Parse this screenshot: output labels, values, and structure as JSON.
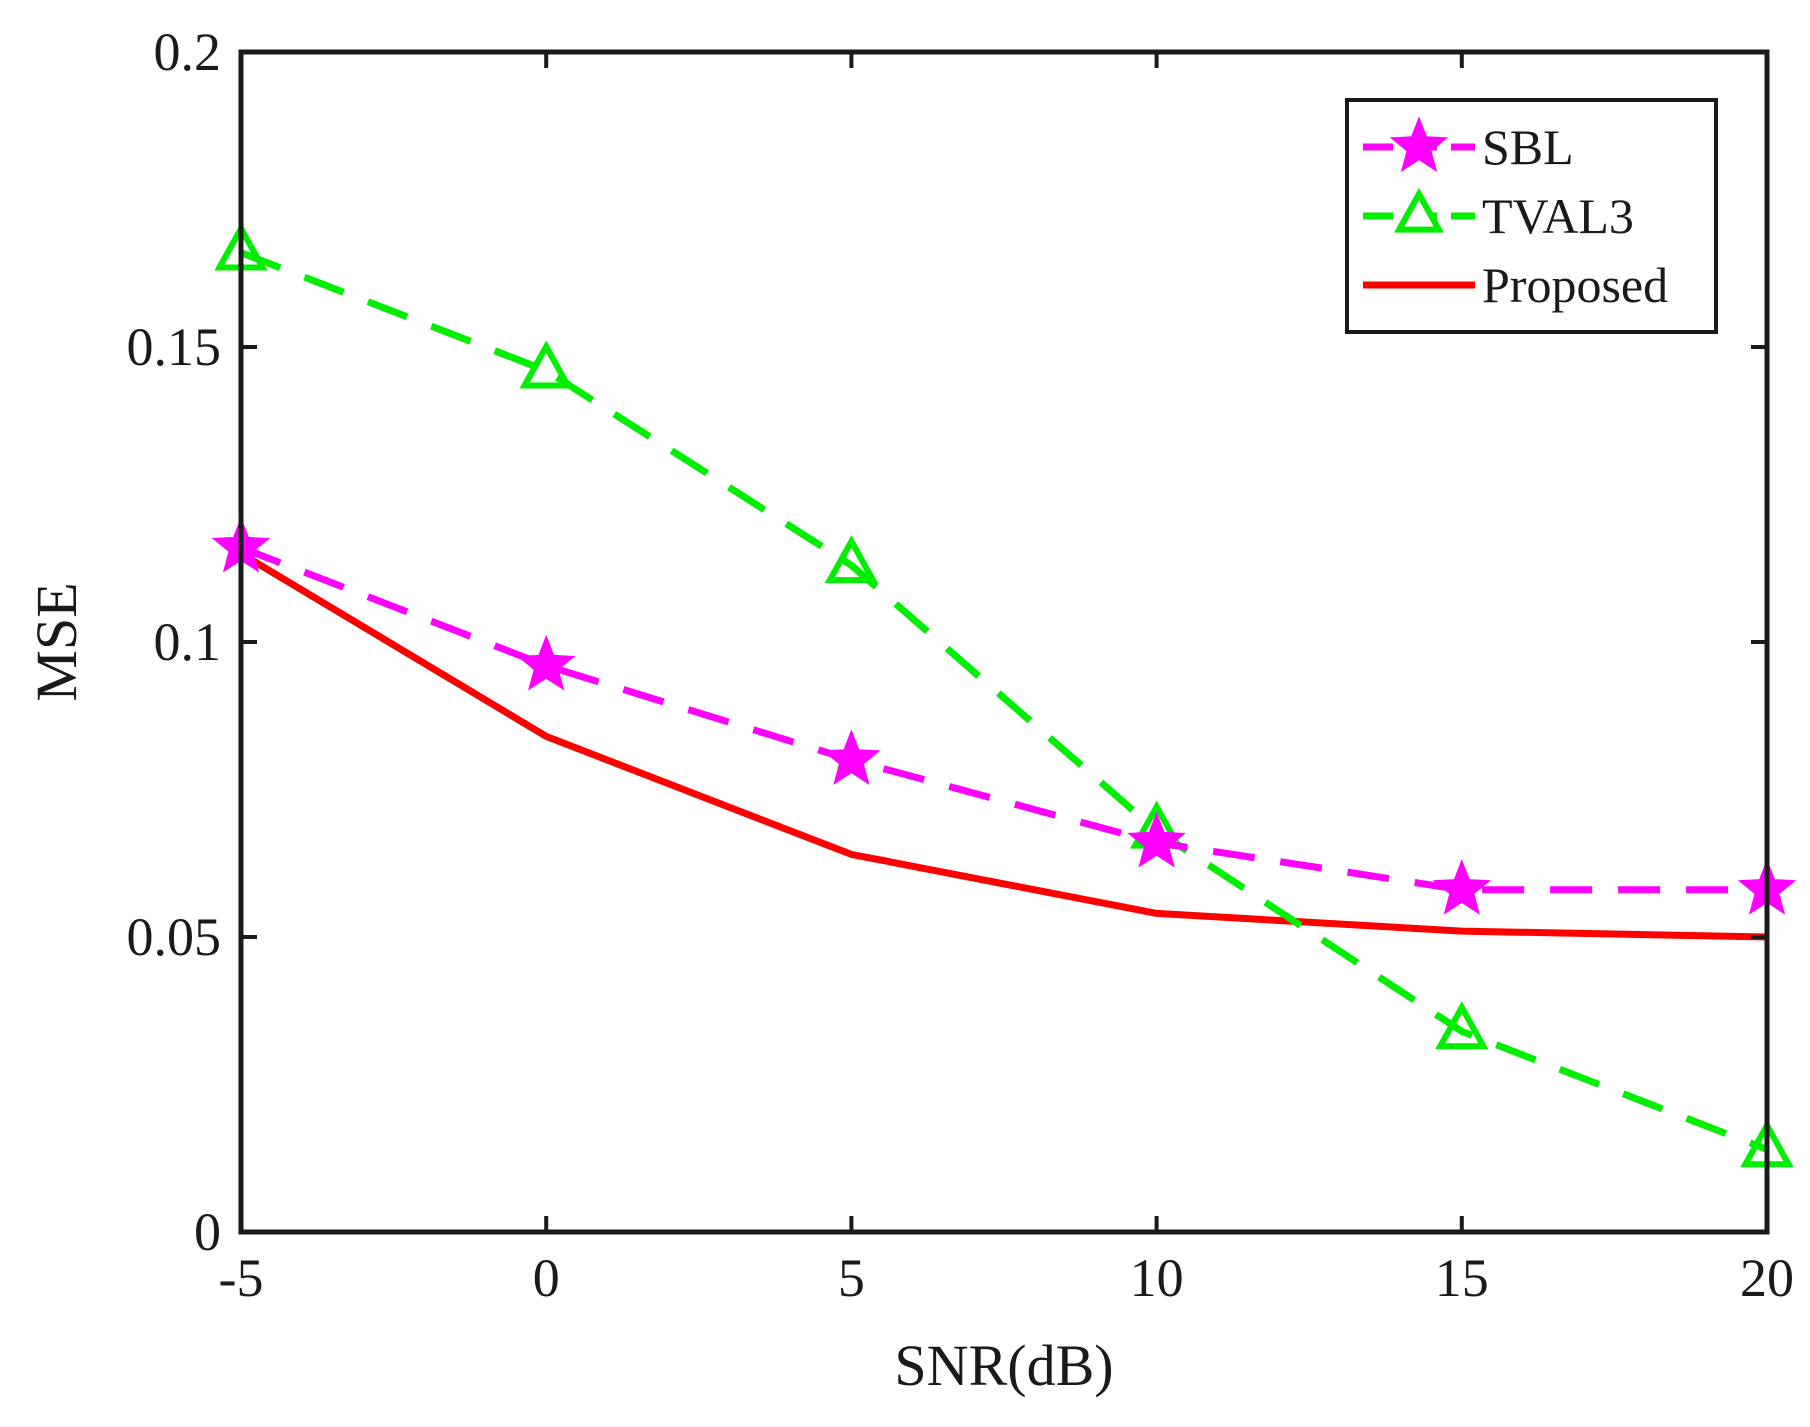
{
  "chart_data": {
    "type": "line",
    "title": "",
    "xlabel": "SNR(dB)",
    "ylabel": "MSE",
    "xlim": [
      -5,
      20
    ],
    "ylim": [
      0,
      0.2
    ],
    "x": [
      -5,
      0,
      5,
      10,
      15,
      20
    ],
    "xticks": [
      -5,
      0,
      5,
      10,
      15,
      20
    ],
    "xtick_labels": [
      "-5",
      "0",
      "5",
      "10",
      "15",
      "20"
    ],
    "yticks": [
      0,
      0.05,
      0.1,
      0.15,
      0.2
    ],
    "ytick_labels": [
      "0",
      "0.05",
      "0.1",
      "0.15",
      "0.2"
    ],
    "grid": false,
    "legend_position": "top-right",
    "series": [
      {
        "name": "SBL",
        "values": [
          0.116,
          0.096,
          0.08,
          0.066,
          0.058,
          0.058
        ],
        "color": "#ff00ff",
        "dash": "dashed",
        "marker": "star"
      },
      {
        "name": "TVAL3",
        "values": [
          0.166,
          0.146,
          0.113,
          0.068,
          0.034,
          0.014
        ],
        "color": "#00ee00",
        "dash": "dashed",
        "marker": "triangle"
      },
      {
        "name": "Proposed",
        "values": [
          0.115,
          0.084,
          0.064,
          0.054,
          0.051,
          0.05
        ],
        "color": "#ff0000",
        "dash": "solid",
        "marker": "none"
      }
    ]
  }
}
